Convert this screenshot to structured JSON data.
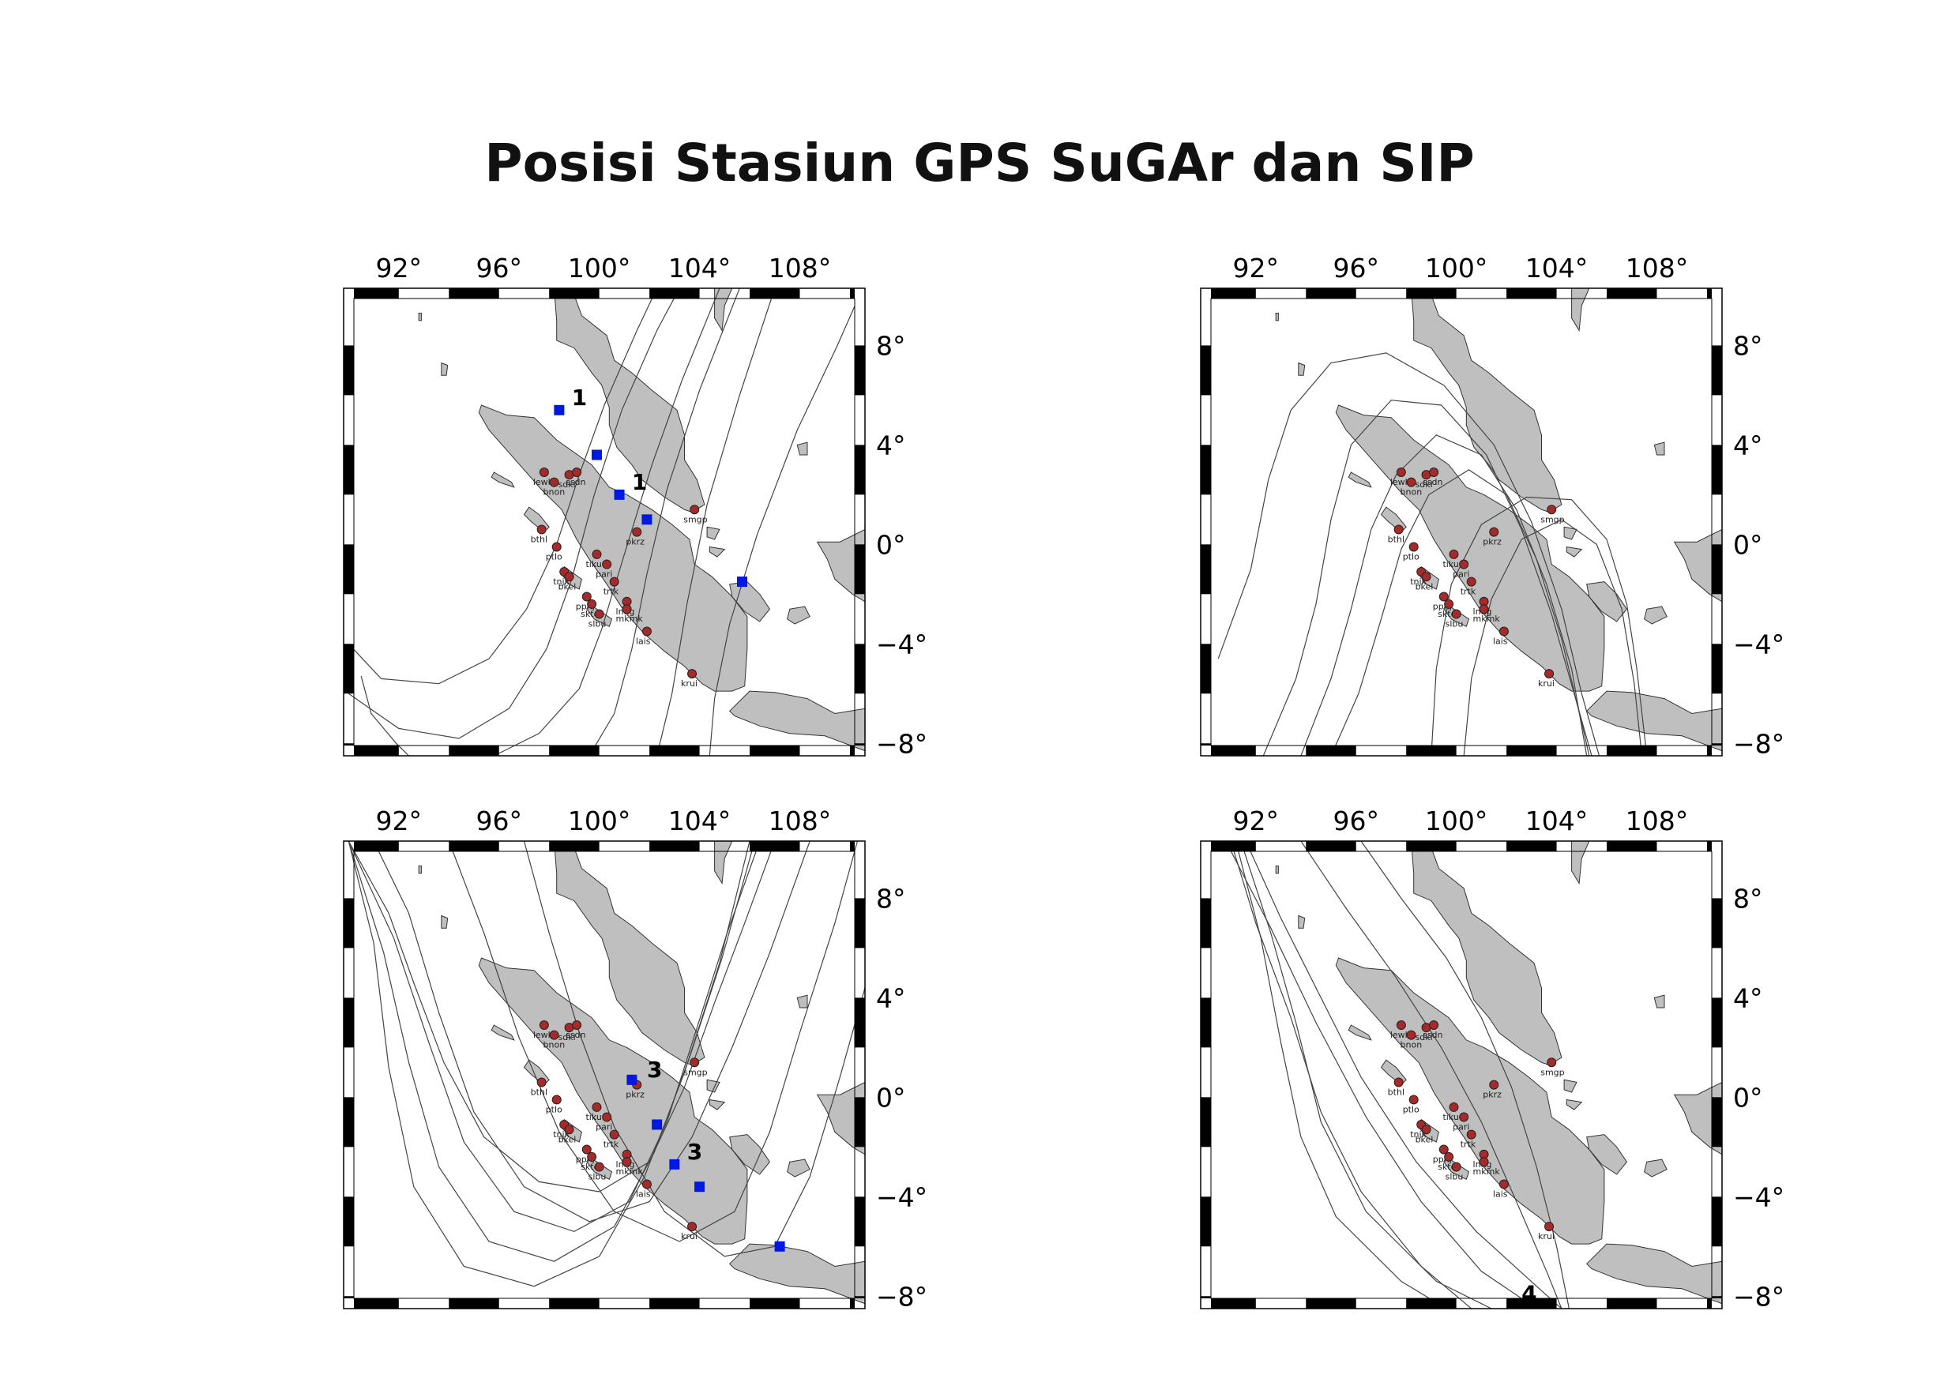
{
  "title": "Posisi Stasiun GPS SuGAr dan SIP",
  "axes": {
    "lon_ticks": [
      "92°",
      "96°",
      "100°",
      "104°",
      "108°"
    ],
    "lon_values": [
      92,
      96,
      100,
      104,
      108
    ],
    "lat_ticks": [
      "8°",
      "4°",
      "0°",
      "−4°",
      "−8°"
    ],
    "lat_values": [
      8,
      4,
      0,
      -4,
      -8
    ],
    "lon_range": [
      89.8,
      110.6
    ],
    "lat_range": [
      -8.5,
      10.3
    ]
  },
  "colors": {
    "land": "#bfbfbf",
    "coast": "#333333",
    "station": "#a52a2a",
    "sip": "#0018e0",
    "track": "#444444"
  },
  "stations": [
    {
      "name": "lewk",
      "lon": 97.8,
      "lat": 2.9
    },
    {
      "name": "bnon",
      "lon": 98.2,
      "lat": 2.5
    },
    {
      "name": "sdkl",
      "lon": 98.8,
      "lat": 2.8
    },
    {
      "name": "ssdn",
      "lon": 99.1,
      "lat": 2.9
    },
    {
      "name": "bthl",
      "lon": 97.7,
      "lat": 0.6
    },
    {
      "name": "ptlo",
      "lon": 98.3,
      "lat": -0.1
    },
    {
      "name": "tiku",
      "lon": 99.9,
      "lat": -0.4
    },
    {
      "name": "pari",
      "lon": 100.3,
      "lat": -0.8
    },
    {
      "name": "tnjk",
      "lon": 98.6,
      "lat": -1.1
    },
    {
      "name": "bkel",
      "lon": 98.8,
      "lat": -1.3
    },
    {
      "name": "trtk",
      "lon": 100.6,
      "lat": -1.5
    },
    {
      "name": "ppnj",
      "lon": 99.5,
      "lat": -2.1
    },
    {
      "name": "skte",
      "lon": 99.7,
      "lat": -2.4
    },
    {
      "name": "slbu",
      "lon": 100.0,
      "lat": -2.8
    },
    {
      "name": "lnng",
      "lon": 101.1,
      "lat": -2.3
    },
    {
      "name": "mkmk",
      "lon": 101.1,
      "lat": -2.6
    },
    {
      "name": "lais",
      "lon": 101.9,
      "lat": -3.5
    },
    {
      "name": "krui",
      "lon": 103.7,
      "lat": -5.2
    },
    {
      "name": "pkrz",
      "lon": 101.5,
      "lat": 0.5
    },
    {
      "name": "smgp",
      "lon": 103.8,
      "lat": 1.4
    }
  ],
  "panels": [
    {
      "id": "top-left",
      "sip_points": [
        [
          98.4,
          5.4
        ],
        [
          99.9,
          3.6
        ],
        [
          100.8,
          2.0
        ],
        [
          101.9,
          1.0
        ],
        [
          105.7,
          -1.5
        ]
      ],
      "labels": [
        {
          "text": "1",
          "lon": 98.9,
          "lat": 5.6
        },
        {
          "text": "1",
          "lon": 101.3,
          "lat": 2.2
        }
      ]
    },
    {
      "id": "top-right",
      "sip_points": [],
      "labels": []
    },
    {
      "id": "bottom-left",
      "sip_points": [
        [
          101.3,
          0.7
        ],
        [
          102.3,
          -1.1
        ],
        [
          103.0,
          -2.7
        ],
        [
          104.0,
          -3.6
        ],
        [
          107.2,
          -6.0
        ]
      ],
      "labels": [
        {
          "text": "3",
          "lon": 101.9,
          "lat": 0.8
        },
        {
          "text": "3",
          "lon": 103.5,
          "lat": -2.5
        }
      ]
    },
    {
      "id": "bottom-right",
      "sip_points": [],
      "labels": [
        {
          "text": "4",
          "lon": 102.6,
          "lat": -8.2
        }
      ]
    }
  ]
}
